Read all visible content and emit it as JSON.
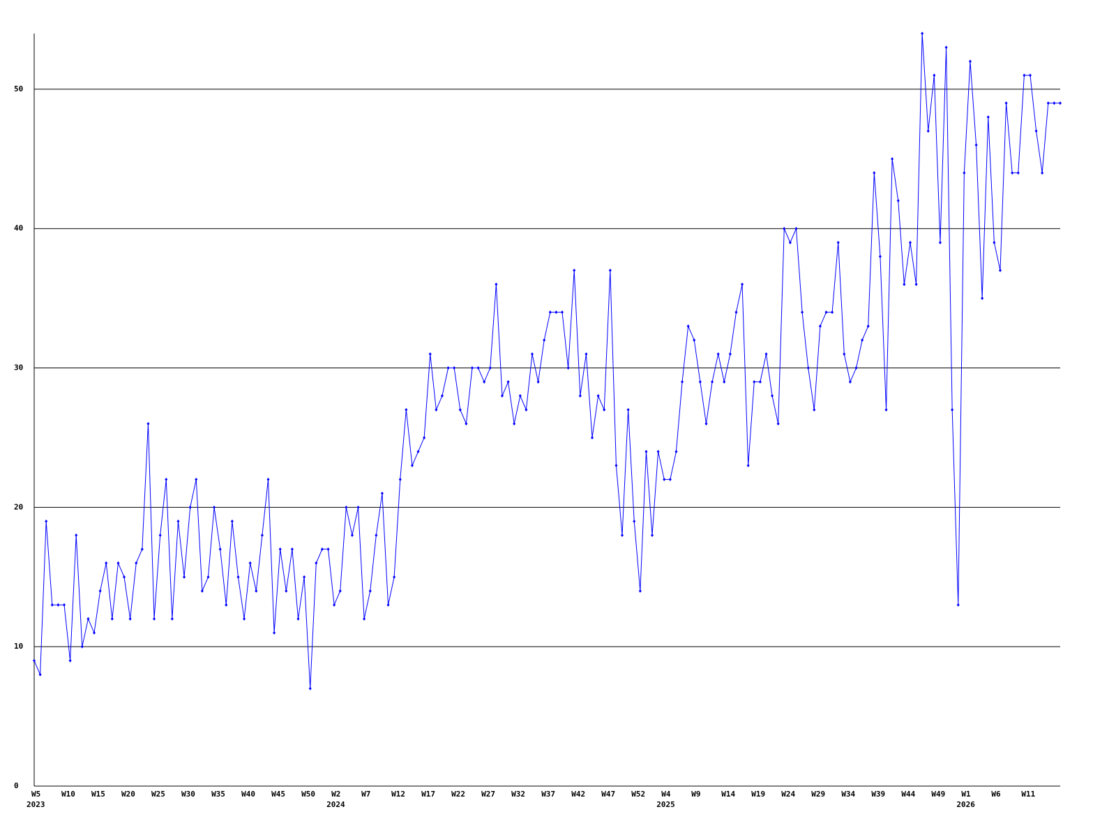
{
  "chart_data": {
    "type": "line",
    "categories": [
      "W5",
      null,
      null,
      null,
      null,
      "W10",
      null,
      null,
      null,
      null,
      "W15",
      null,
      null,
      null,
      null,
      "W20",
      null,
      null,
      null,
      null,
      "W25",
      null,
      null,
      null,
      null,
      "W30",
      null,
      null,
      null,
      null,
      "W35",
      null,
      null,
      null,
      null,
      "W40",
      null,
      null,
      null,
      null,
      "W45",
      null,
      null,
      null,
      null,
      "W50",
      null,
      null,
      null,
      null,
      "W2",
      null,
      null,
      null,
      null,
      "W7",
      null,
      null,
      null,
      null,
      "W12",
      null,
      null,
      null,
      null,
      "W17",
      null,
      null,
      null,
      null,
      "W22",
      null,
      null,
      null,
      null,
      "W27",
      null,
      null,
      null,
      null,
      "W32",
      null,
      null,
      null,
      null,
      "W37",
      null,
      null,
      null,
      null,
      "W42",
      null,
      null,
      null,
      null,
      "W47",
      null,
      null,
      null,
      null,
      "W52",
      null,
      null,
      null,
      null,
      "W4",
      null,
      null,
      null,
      null,
      "W9",
      null,
      null,
      null,
      null,
      "W14",
      null,
      null,
      null,
      null,
      "W19",
      null,
      null,
      null,
      null,
      "W24",
      null,
      null,
      null,
      null,
      "W29",
      null,
      null,
      null,
      null,
      "W34",
      null,
      null,
      null,
      null,
      "W39",
      null,
      null,
      null,
      null,
      "W44",
      null,
      null,
      null,
      null,
      "W49",
      null,
      null,
      null,
      null,
      "W1",
      null,
      null,
      null,
      null,
      "W6",
      null,
      null,
      null,
      null,
      "W11",
      null,
      null,
      null,
      null,
      null,
      null
    ],
    "year_groups": [
      {
        "label": "2023",
        "start": 0
      },
      {
        "label": "2024",
        "start": 50
      },
      {
        "label": "2025",
        "start": 105
      },
      {
        "label": "2026",
        "start": 155
      }
    ],
    "series": [
      {
        "color": "#0000ff",
        "values": [
          9,
          8,
          19,
          13,
          13,
          13,
          9,
          18,
          10,
          12,
          11,
          14,
          16,
          12,
          16,
          15,
          12,
          16,
          17,
          26,
          12,
          18,
          22,
          12,
          19,
          15,
          20,
          22,
          14,
          15,
          20,
          17,
          13,
          19,
          15,
          12,
          16,
          14,
          18,
          22,
          11,
          17,
          14,
          17,
          12,
          15,
          7,
          16,
          17,
          17,
          13,
          14,
          20,
          18,
          20,
          12,
          14,
          18,
          21,
          13,
          15,
          22,
          27,
          23,
          24,
          25,
          31,
          27,
          28,
          30,
          30,
          27,
          26,
          30,
          30,
          29,
          30,
          36,
          28,
          29,
          26,
          28,
          27,
          31,
          29,
          32,
          34,
          34,
          34,
          30,
          37,
          28,
          31,
          25,
          28,
          27,
          37,
          23,
          18,
          27,
          19,
          14,
          24,
          18,
          24,
          22,
          22,
          24,
          29,
          33,
          32,
          29,
          26,
          29,
          31,
          29,
          31,
          34,
          36,
          23,
          29,
          29,
          31,
          28,
          26,
          40,
          39,
          40,
          34,
          30,
          27,
          33,
          34,
          34,
          39,
          31,
          29,
          30,
          32,
          33,
          44,
          38,
          27,
          45,
          42,
          36,
          39,
          36,
          54,
          47,
          51,
          39,
          53,
          27,
          13,
          44,
          52,
          46,
          35,
          48,
          39,
          37,
          49,
          44,
          44,
          51,
          51,
          47,
          44,
          49,
          49,
          49
        ]
      }
    ],
    "ylim": [
      0,
      54
    ],
    "yticks": [
      0,
      10,
      20,
      30,
      40,
      50
    ],
    "grid": true,
    "grid_color": "#000000"
  }
}
